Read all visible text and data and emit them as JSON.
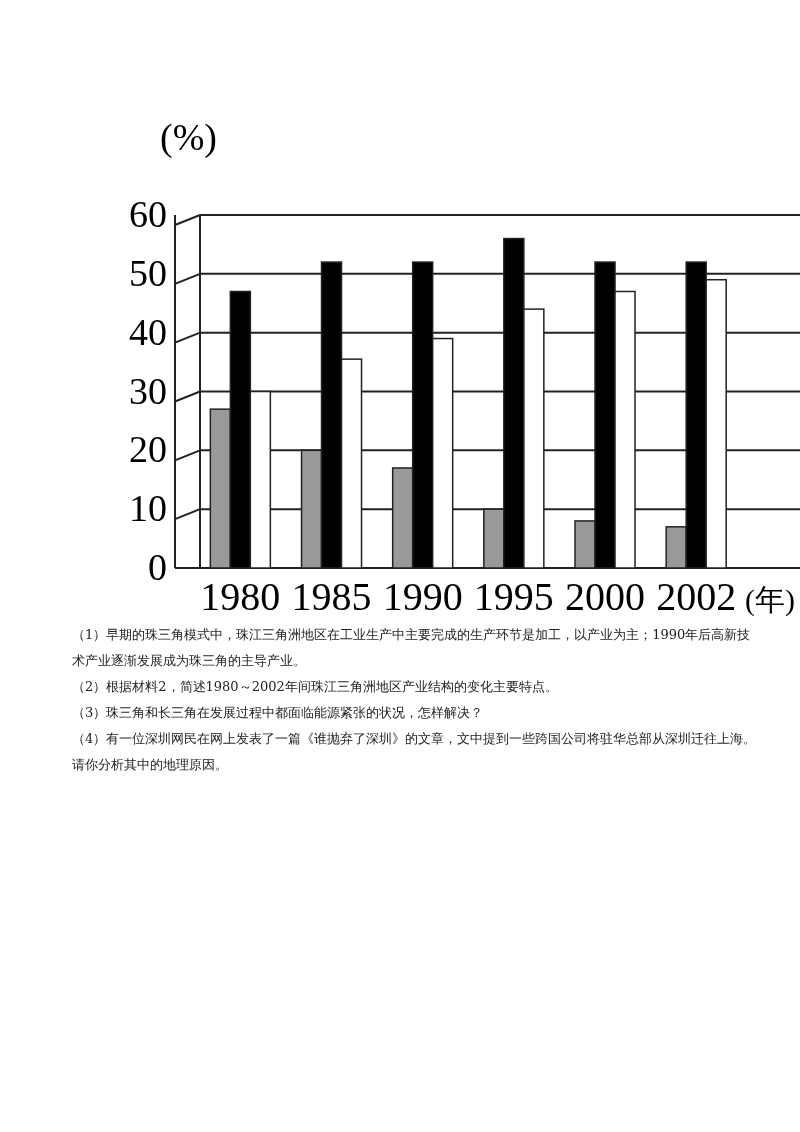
{
  "chart_data": {
    "type": "bar",
    "ylabel": "(%)",
    "xlabel": "(年)",
    "categories": [
      "1980",
      "1985",
      "1990",
      "1995",
      "2000",
      "2002"
    ],
    "series": [
      {
        "color": "#999999",
        "values": [
          27,
          20,
          17,
          10,
          8,
          7
        ]
      },
      {
        "color": "#000000",
        "values": [
          47,
          52,
          52,
          56,
          52,
          52
        ]
      },
      {
        "color": "#ffffff",
        "values": [
          30,
          35.5,
          39,
          44,
          47,
          49
        ]
      }
    ],
    "ylim": [
      0,
      60
    ],
    "yticks": [
      0,
      10,
      20,
      30,
      40,
      50,
      60
    ],
    "grid": "y",
    "annotations": [
      "（1）早期的珠三角模式中，珠江三角洲地区在工业生产中主要完成的生产环节是加工，以产业为主；1990年后高新技术产业逐渐发展成为珠三角的主导产业。",
      "（2）根据材料2，简述1980～2002年间珠江三角洲地区产业结构的变化主要特点。",
      "（3）珠三角和长三角在发展过程中都面临能源紧张的状况，怎样解决？",
      "（4）有一位深圳网民在网上发表了一篇《谁抛弃了深圳》的文章，文中提到一些跨国公司将驻华总部从深圳迁往上海。请你分析其中的地理原因。"
    ]
  }
}
